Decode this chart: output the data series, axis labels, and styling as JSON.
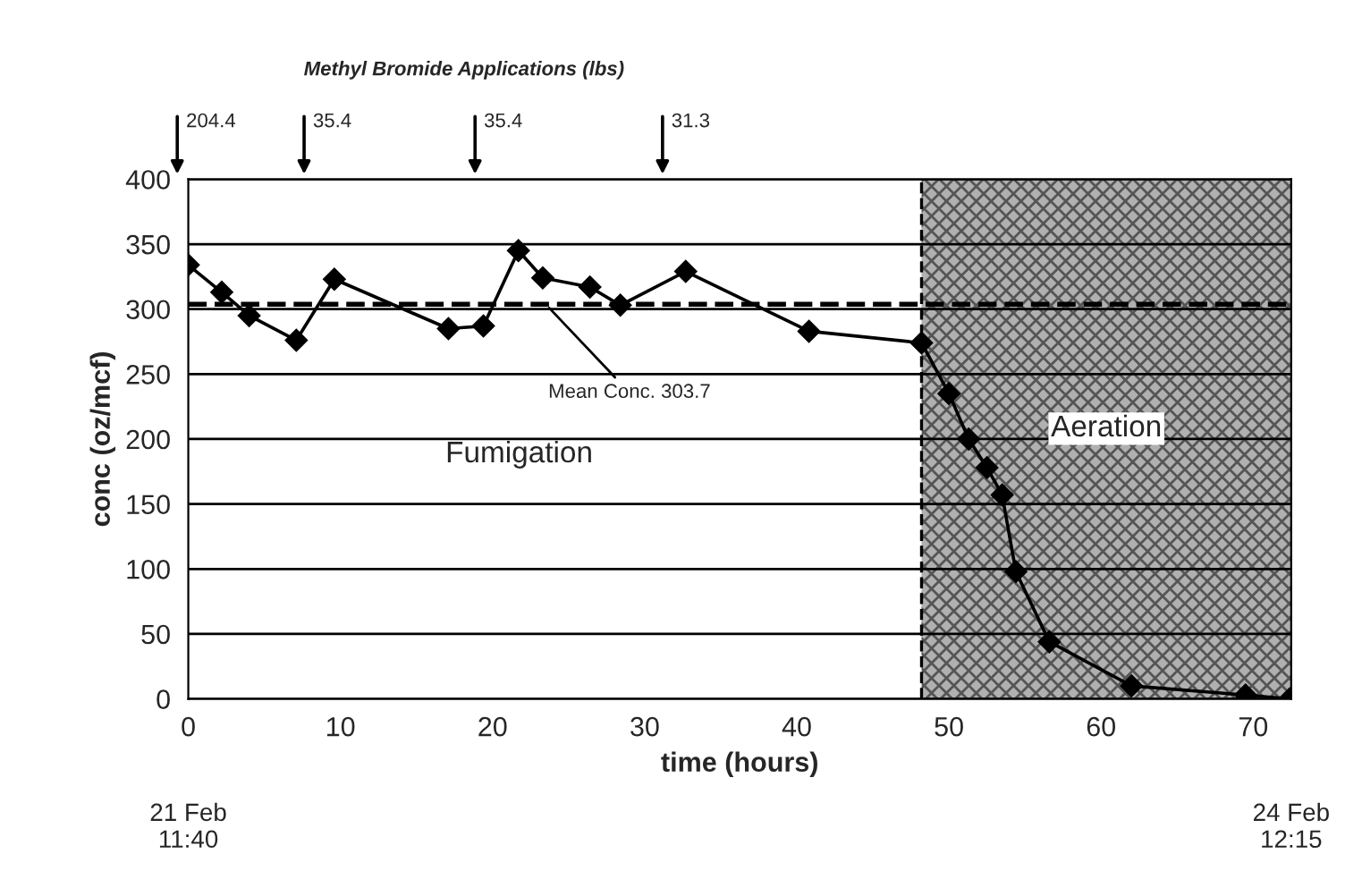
{
  "chart_data": {
    "type": "line",
    "xlabel": "time (hours)",
    "ylabel": "conc (oz/mcf)",
    "x": [
      0,
      2.2,
      4,
      7.1,
      9.6,
      17.1,
      19.4,
      21.7,
      23.3,
      26.4,
      28.4,
      32.7,
      40.8,
      48.2,
      50,
      51.3,
      52.5,
      53.5,
      54.4,
      56.6,
      62,
      69.5,
      72.4
    ],
    "series": [
      {
        "color": "#000000",
        "values": [
          334,
          313,
          295,
          276,
          323,
          285,
          287,
          345,
          324,
          317,
          303,
          329,
          283,
          274,
          235,
          200,
          178,
          157,
          98,
          44,
          10,
          3,
          0
        ]
      }
    ],
    "xlim": [
      0,
      72.5
    ],
    "ylim": [
      0,
      400
    ],
    "xticks": [
      0,
      10,
      20,
      30,
      40,
      50,
      60,
      70
    ],
    "yticks": [
      0,
      50,
      100,
      150,
      200,
      250,
      300,
      350,
      400
    ],
    "grid": "y",
    "marker": "diamond",
    "line_style": "solid",
    "ref_lines": [
      {
        "axis": "y",
        "value": 303.7,
        "line_style": "dashed",
        "color": "#000000"
      },
      {
        "axis": "x",
        "value": 48.2,
        "line_style": "dashed",
        "color": "#000000"
      }
    ],
    "bands": [
      {
        "axis": "x",
        "from": 48.2,
        "to": 72.5,
        "label": "Aeration",
        "color": "#b0b0b0"
      }
    ],
    "annotations": [
      "Methyl Bromide Applications (lbs)",
      "204.4",
      "35.4",
      "35.4",
      "31.3",
      "21 Feb\n11:40",
      "24 Feb\n12:15",
      "Fumigation",
      {
        "text": "Mean Conc. 303.7",
        "x": 23.5,
        "y": 303.7
      }
    ]
  }
}
